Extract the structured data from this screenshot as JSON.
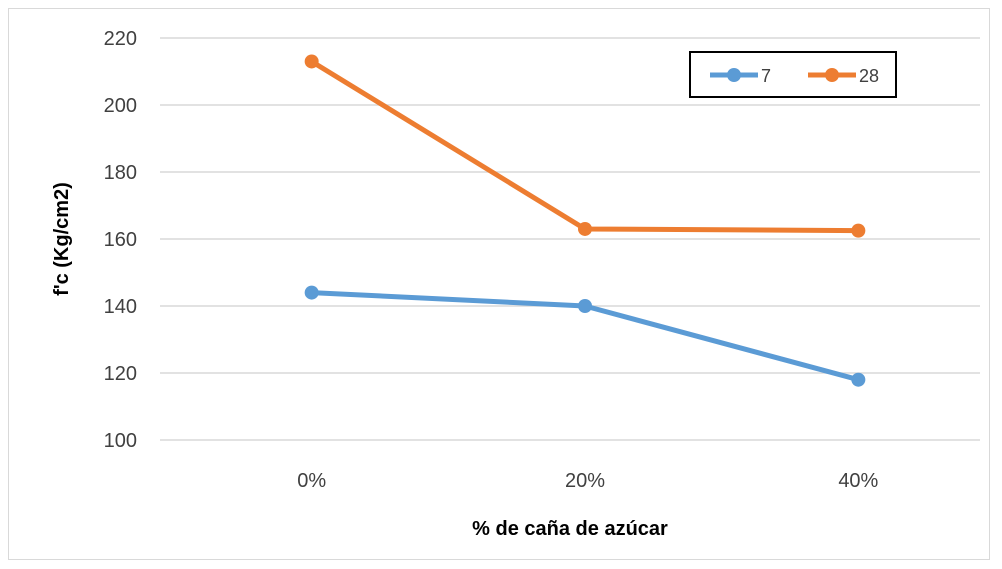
{
  "chart_data": {
    "type": "line",
    "categories": [
      "0%",
      "20%",
      "40%"
    ],
    "series": [
      {
        "name": "7",
        "values": [
          144,
          140,
          118
        ],
        "color": "#5B9BD5"
      },
      {
        "name": "28",
        "values": [
          213,
          163,
          162.5
        ],
        "color": "#ED7D31"
      }
    ],
    "xlabel": "% de caña de azúcar",
    "ylabel": "f'c (Kg/cm2)",
    "ylim": [
      100,
      220
    ],
    "yticks": [
      100,
      120,
      140,
      160,
      180,
      200,
      220
    ],
    "grid": true,
    "legend_position": "top-right"
  }
}
